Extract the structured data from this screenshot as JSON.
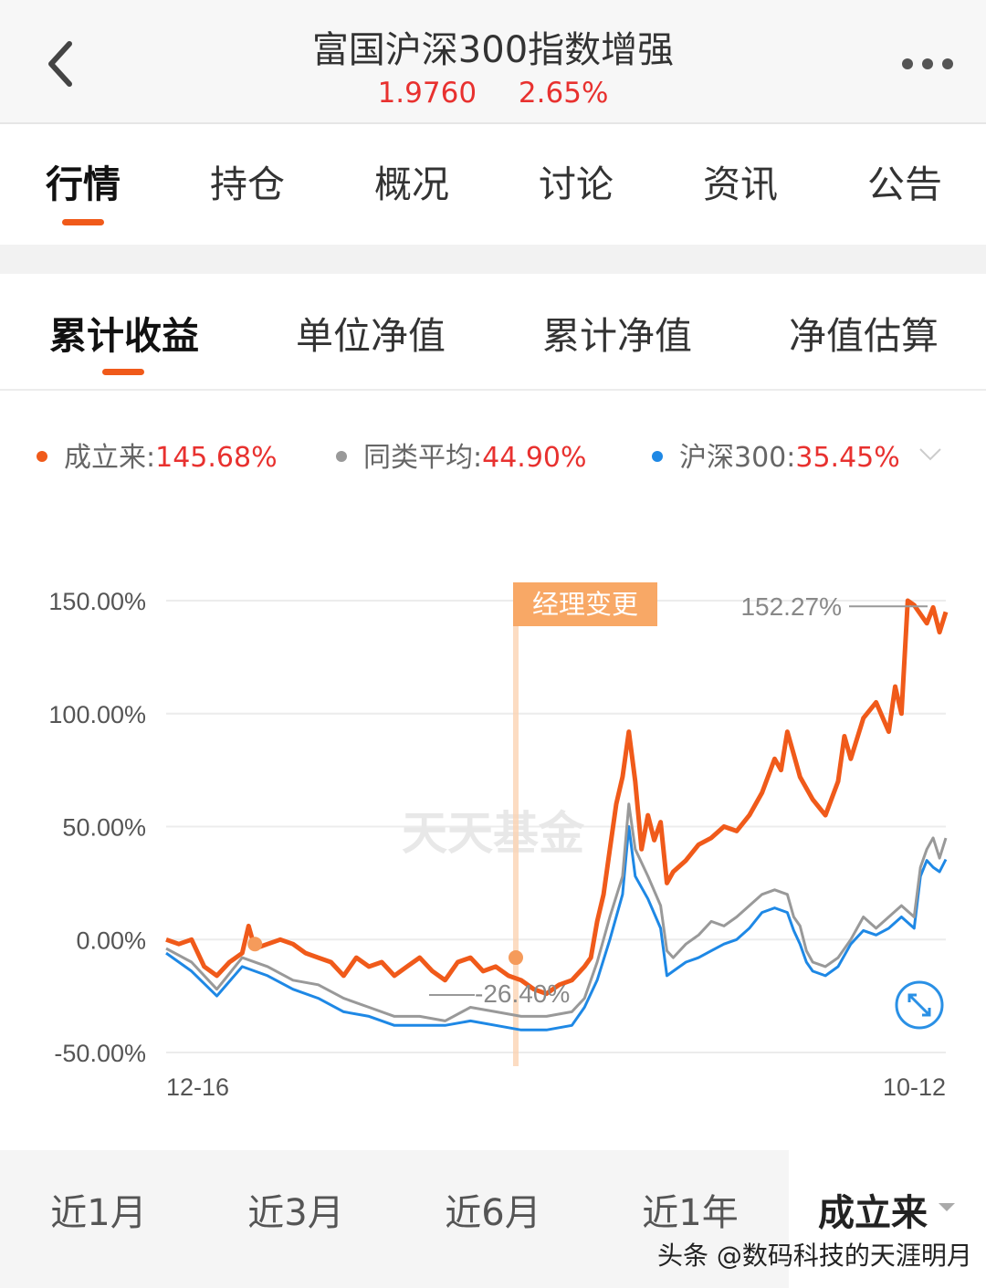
{
  "header": {
    "title": "富国沪深300指数增强",
    "nav_value": "1.9760",
    "change": "2.65%",
    "back_icon": "chevron-left-icon",
    "more_icon": "more-dots-icon"
  },
  "main_tabs": [
    "行情",
    "持仓",
    "概况",
    "讨论",
    "资讯",
    "公告"
  ],
  "sub_tabs": [
    "累计收益",
    "单位净值",
    "累计净值",
    "净值估算"
  ],
  "legend": [
    {
      "label": "成立来:",
      "value": "145.68%",
      "color": "#f05a1a"
    },
    {
      "label": "同类平均:",
      "value": "44.90%",
      "color": "#999999"
    },
    {
      "label": "沪深300:",
      "value": "35.45%",
      "color": "#1e88e5"
    }
  ],
  "chart_data": {
    "type": "line",
    "y_tick_labels": [
      "150.00%",
      "100.00%",
      "50.00%",
      "0.00%",
      "-50.00%"
    ],
    "ylim": [
      -50,
      150
    ],
    "x_tick_labels": [
      "12-16",
      "10-12"
    ],
    "watermark": "天天基金",
    "annotations": {
      "manager_change": "经理变更",
      "max_label": "152.27%",
      "min_label": "-26.40%"
    },
    "series": [
      {
        "key": "fund",
        "color": "#f05a1a",
        "points": [
          [
            0,
            0
          ],
          [
            2,
            -2
          ],
          [
            4,
            0
          ],
          [
            6,
            -12
          ],
          [
            8,
            -16
          ],
          [
            10,
            -10
          ],
          [
            12,
            -6
          ],
          [
            13,
            6
          ],
          [
            14,
            -4
          ],
          [
            16,
            -2
          ],
          [
            18,
            0
          ],
          [
            20,
            -2
          ],
          [
            22,
            -6
          ],
          [
            24,
            -8
          ],
          [
            26,
            -10
          ],
          [
            28,
            -16
          ],
          [
            30,
            -8
          ],
          [
            32,
            -12
          ],
          [
            34,
            -10
          ],
          [
            36,
            -16
          ],
          [
            38,
            -12
          ],
          [
            40,
            -8
          ],
          [
            42,
            -14
          ],
          [
            44,
            -18
          ],
          [
            46,
            -10
          ],
          [
            48,
            -8
          ],
          [
            50,
            -14
          ],
          [
            52,
            -12
          ],
          [
            54,
            -16
          ],
          [
            56,
            -18
          ],
          [
            58,
            -22
          ],
          [
            60,
            -24
          ],
          [
            62,
            -20
          ],
          [
            64,
            -18
          ],
          [
            66,
            -12
          ],
          [
            67,
            -8
          ],
          [
            68,
            8
          ],
          [
            69,
            20
          ],
          [
            70,
            40
          ],
          [
            71,
            60
          ],
          [
            72,
            72
          ],
          [
            73,
            92
          ],
          [
            74,
            70
          ],
          [
            75,
            40
          ],
          [
            76,
            55
          ],
          [
            77,
            44
          ],
          [
            78,
            52
          ],
          [
            79,
            25
          ],
          [
            80,
            30
          ],
          [
            82,
            35
          ],
          [
            84,
            42
          ],
          [
            86,
            45
          ],
          [
            88,
            50
          ],
          [
            90,
            48
          ],
          [
            92,
            55
          ],
          [
            94,
            65
          ],
          [
            96,
            80
          ],
          [
            97,
            75
          ],
          [
            98,
            92
          ],
          [
            99,
            82
          ],
          [
            100,
            72
          ],
          [
            102,
            62
          ],
          [
            104,
            55
          ],
          [
            106,
            70
          ],
          [
            107,
            90
          ],
          [
            108,
            80
          ],
          [
            110,
            98
          ],
          [
            112,
            105
          ],
          [
            114,
            92
          ],
          [
            115,
            112
          ],
          [
            116,
            100
          ],
          [
            117,
            150
          ],
          [
            118,
            148
          ],
          [
            120,
            140
          ],
          [
            121,
            147
          ],
          [
            122,
            136
          ],
          [
            123,
            145
          ]
        ]
      },
      {
        "key": "peer_avg",
        "color": "#999999",
        "points": [
          [
            0,
            -4
          ],
          [
            4,
            -10
          ],
          [
            8,
            -22
          ],
          [
            12,
            -8
          ],
          [
            16,
            -12
          ],
          [
            20,
            -18
          ],
          [
            24,
            -20
          ],
          [
            28,
            -26
          ],
          [
            32,
            -30
          ],
          [
            36,
            -34
          ],
          [
            40,
            -34
          ],
          [
            44,
            -36
          ],
          [
            48,
            -30
          ],
          [
            52,
            -32
          ],
          [
            56,
            -34
          ],
          [
            60,
            -34
          ],
          [
            64,
            -32
          ],
          [
            66,
            -26
          ],
          [
            68,
            -10
          ],
          [
            70,
            10
          ],
          [
            72,
            28
          ],
          [
            73,
            60
          ],
          [
            74,
            40
          ],
          [
            76,
            28
          ],
          [
            78,
            15
          ],
          [
            79,
            -5
          ],
          [
            80,
            -8
          ],
          [
            82,
            -2
          ],
          [
            84,
            2
          ],
          [
            86,
            8
          ],
          [
            88,
            6
          ],
          [
            90,
            10
          ],
          [
            92,
            15
          ],
          [
            94,
            20
          ],
          [
            96,
            22
          ],
          [
            98,
            20
          ],
          [
            99,
            10
          ],
          [
            100,
            6
          ],
          [
            101,
            -5
          ],
          [
            102,
            -10
          ],
          [
            104,
            -12
          ],
          [
            106,
            -8
          ],
          [
            108,
            0
          ],
          [
            110,
            10
          ],
          [
            112,
            5
          ],
          [
            114,
            10
          ],
          [
            116,
            15
          ],
          [
            118,
            10
          ],
          [
            119,
            32
          ],
          [
            120,
            40
          ],
          [
            121,
            45
          ],
          [
            122,
            36
          ],
          [
            123,
            44.9
          ]
        ]
      },
      {
        "key": "hs300",
        "color": "#1e88e5",
        "points": [
          [
            0,
            -6
          ],
          [
            4,
            -14
          ],
          [
            8,
            -25
          ],
          [
            12,
            -12
          ],
          [
            16,
            -16
          ],
          [
            20,
            -22
          ],
          [
            24,
            -26
          ],
          [
            28,
            -32
          ],
          [
            32,
            -34
          ],
          [
            36,
            -38
          ],
          [
            40,
            -38
          ],
          [
            44,
            -38
          ],
          [
            48,
            -36
          ],
          [
            52,
            -38
          ],
          [
            56,
            -40
          ],
          [
            60,
            -40
          ],
          [
            64,
            -38
          ],
          [
            66,
            -30
          ],
          [
            68,
            -18
          ],
          [
            70,
            0
          ],
          [
            72,
            20
          ],
          [
            73,
            50
          ],
          [
            74,
            28
          ],
          [
            76,
            18
          ],
          [
            78,
            5
          ],
          [
            79,
            -16
          ],
          [
            80,
            -14
          ],
          [
            82,
            -10
          ],
          [
            84,
            -8
          ],
          [
            86,
            -5
          ],
          [
            88,
            -2
          ],
          [
            90,
            0
          ],
          [
            92,
            5
          ],
          [
            94,
            12
          ],
          [
            96,
            14
          ],
          [
            98,
            12
          ],
          [
            99,
            4
          ],
          [
            100,
            -2
          ],
          [
            101,
            -10
          ],
          [
            102,
            -14
          ],
          [
            104,
            -16
          ],
          [
            106,
            -12
          ],
          [
            108,
            -2
          ],
          [
            110,
            4
          ],
          [
            112,
            2
          ],
          [
            114,
            5
          ],
          [
            116,
            10
          ],
          [
            118,
            5
          ],
          [
            119,
            28
          ],
          [
            120,
            35
          ],
          [
            121,
            32
          ],
          [
            122,
            30
          ],
          [
            123,
            35.45
          ]
        ]
      }
    ]
  },
  "periods": [
    "近1月",
    "近3月",
    "近6月",
    "近1年"
  ],
  "active_period": "成立来",
  "watermark_text": "头条 @数码科技的天涯明月",
  "expand_icon": "expand-icon"
}
